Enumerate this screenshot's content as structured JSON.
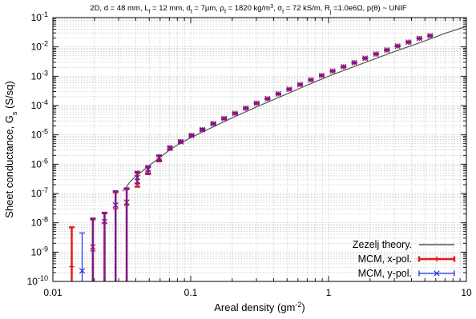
{
  "chart_data": {
    "type": "line",
    "title": "2D, d = 48 mm, L_f = 12 mm, d_f = 7µm, ρ_f = 1820 kg/m³, σ_f = 72 kS/m, R_j =1.0e6Ω, p(θ) ~ UNIF",
    "title_parts": [
      {
        "t": "2D, d = 48 mm, L"
      },
      {
        "t": "f",
        "sub": true
      },
      {
        "t": " = 12 mm, d"
      },
      {
        "t": "f",
        "sub": true
      },
      {
        "t": " = 7µm, ρ"
      },
      {
        "t": "f",
        "sub": true
      },
      {
        "t": " = 1820 kg/m"
      },
      {
        "t": "3",
        "sup": true
      },
      {
        "t": ", σ"
      },
      {
        "t": "f",
        "sub": true
      },
      {
        "t": " = 72 kS/m, R"
      },
      {
        "t": "j",
        "sub": true
      },
      {
        "t": " =1.0e6Ω, p(θ) ~ UNIF"
      }
    ],
    "xlabel": "Areal density (gm⁻²)",
    "xlabel_parts": [
      {
        "t": "Areal density (gm"
      },
      {
        "t": "-2",
        "sup": true
      },
      {
        "t": ")"
      }
    ],
    "ylabel": "Sheet conductance, Gs (S/sq)",
    "ylabel_parts": [
      {
        "t": "Sheet conductance, G"
      },
      {
        "t": "s",
        "sub": true
      },
      {
        "t": " (S/sq)"
      }
    ],
    "xscale": "log",
    "yscale": "log",
    "xlim": [
      0.01,
      10
    ],
    "ylim": [
      1e-10,
      0.1
    ],
    "x_ticks": [
      0.01,
      0.1,
      1,
      10
    ],
    "x_tick_labels": [
      "0.01",
      "0.1",
      "1",
      "10"
    ],
    "y_ticks": [
      1e-10,
      1e-09,
      1e-08,
      1e-07,
      1e-06,
      1e-05,
      0.0001,
      0.001,
      0.01,
      0.1
    ],
    "y_tick_labels": [
      {
        "base": "10",
        "exp": "-10"
      },
      {
        "base": "10",
        "exp": "-9"
      },
      {
        "base": "10",
        "exp": "-8"
      },
      {
        "base": "10",
        "exp": "-7"
      },
      {
        "base": "10",
        "exp": "-6"
      },
      {
        "base": "10",
        "exp": "-5"
      },
      {
        "base": "10",
        "exp": "-4"
      },
      {
        "base": "10",
        "exp": "-3"
      },
      {
        "base": "10",
        "exp": "-2"
      },
      {
        "base": "10",
        "exp": "-1"
      }
    ],
    "grid": true,
    "legend_position": "bottom-right",
    "theory": {
      "name": "Zezelj theory.",
      "color": "#555555",
      "x": [
        0.032,
        0.034,
        0.036,
        0.04,
        0.045,
        0.05,
        0.06,
        0.07,
        0.08,
        0.1,
        0.15,
        0.2,
        0.3,
        0.5,
        0.7,
        1,
        2,
        3,
        5,
        7,
        10
      ],
      "y": [
        1.2e-07,
        1.6e-07,
        2.4e-07,
        4e-07,
        6e-07,
        9e-07,
        1.7e-06,
        3e-06,
        4.5e-06,
        8e-06,
        2e-05,
        3.8e-05,
        9e-05,
        0.00025,
        0.0005,
        0.001,
        0.0034,
        0.0069,
        0.016,
        0.029,
        0.05
      ]
    },
    "series": [
      {
        "name": "MCM, x-pol.",
        "color": "#e8141b",
        "marker": "plus",
        "x": [
          0.0137,
          0.0195,
          0.0237,
          0.0285,
          0.0343,
          0.041,
          0.049,
          0.059,
          0.0706,
          0.0846,
          0.1014,
          0.1216,
          0.1458,
          0.1748,
          0.2095,
          0.2511,
          0.301,
          0.3608,
          0.4325,
          0.5184,
          0.6213,
          0.7447,
          0.8926,
          1.07,
          1.283,
          1.538,
          1.844,
          2.21,
          2.65,
          3.17,
          3.8,
          4.56,
          5.46
        ],
        "y": [
          3.2e-10,
          1.1e-09,
          1e-08,
          3e-08,
          4e-08,
          3e-07,
          6e-07,
          1.5e-06,
          3.5e-06,
          5.8e-06,
          9.5e-06,
          1.5e-05,
          2.4e-05,
          3.6e-05,
          5.4e-05,
          8.1e-05,
          0.00012,
          0.00017,
          0.00025,
          0.00036,
          0.00052,
          0.00075,
          0.00106,
          0.0015,
          0.0021,
          0.0029,
          0.0041,
          0.0057,
          0.0078,
          0.0107,
          0.0145,
          0.0195,
          0.024
        ],
        "y_err_low": [
          1e-10,
          1e-10,
          1e-10,
          1e-10,
          1e-10,
          1.7e-07,
          4.6e-07,
          1.25e-06,
          3.1e-06,
          5.4e-06,
          9e-06,
          1.4e-05,
          2.3e-05,
          3.5e-05,
          5.2e-05,
          7.9e-05,
          0.000117,
          0.000167,
          0.000245,
          0.000355,
          0.00051,
          0.00074,
          0.00105,
          0.00148,
          0.00208,
          0.00288,
          0.00405,
          0.00565,
          0.0077,
          0.0106,
          0.0143,
          0.0193,
          0.0237
        ],
        "y_err_high": [
          7e-09,
          1.3e-08,
          2.1e-08,
          1.1e-07,
          1.4e-07,
          5e-07,
          8e-07,
          1.9e-06,
          4e-06,
          6.3e-06,
          1.01e-05,
          1.6e-05,
          2.5e-05,
          3.7e-05,
          5.6e-05,
          8.3e-05,
          0.000123,
          0.000173,
          0.000255,
          0.000365,
          0.00053,
          0.00076,
          0.00107,
          0.00152,
          0.00212,
          0.00292,
          0.00415,
          0.00575,
          0.0079,
          0.0108,
          0.0147,
          0.0197,
          0.0243
        ]
      },
      {
        "name": "MCM, y-pol.",
        "color": "#2233dd",
        "marker": "x",
        "x": [
          0.0163,
          0.0195,
          0.0237,
          0.0285,
          0.0343,
          0.041,
          0.049,
          0.059,
          0.0706,
          0.0846,
          0.1014,
          0.1216,
          0.1458,
          0.1748,
          0.2095,
          0.2511,
          0.301,
          0.3608,
          0.4325,
          0.5184,
          0.6213,
          0.7447,
          0.8926,
          1.07,
          1.283,
          1.538,
          1.844,
          2.21,
          2.65,
          3.17,
          3.8,
          4.56,
          5.46
        ],
        "y": [
          2.3e-10,
          1.5e-09,
          1.1e-08,
          4e-08,
          5e-08,
          3.5e-07,
          6.5e-07,
          1.6e-06,
          3.5e-06,
          5.8e-06,
          9.5e-06,
          1.5e-05,
          2.4e-05,
          3.6e-05,
          5.4e-05,
          8.1e-05,
          0.00012,
          0.00017,
          0.00025,
          0.00036,
          0.00052,
          0.00075,
          0.00106,
          0.0015,
          0.0021,
          0.0029,
          0.0041,
          0.0057,
          0.0078,
          0.0107,
          0.0145,
          0.0195,
          0.024
        ],
        "y_err_low": [
          1e-10,
          1e-10,
          1e-10,
          1e-10,
          1e-10,
          2.2e-07,
          4.8e-07,
          1.3e-06,
          3.1e-06,
          5.4e-06,
          9e-06,
          1.4e-05,
          2.3e-05,
          3.5e-05,
          5.2e-05,
          7.9e-05,
          0.000117,
          0.000167,
          0.000245,
          0.000355,
          0.00051,
          0.00074,
          0.00105,
          0.00148,
          0.00208,
          0.00288,
          0.00405,
          0.00565,
          0.0077,
          0.0106,
          0.0143,
          0.0193,
          0.0237
        ],
        "y_err_high": [
          4.5e-09,
          1.4e-08,
          2.2e-08,
          1.2e-07,
          1.5e-07,
          5.5e-07,
          8.5e-07,
          2e-06,
          4e-06,
          6.3e-06,
          1.01e-05,
          1.6e-05,
          2.5e-05,
          3.7e-05,
          5.6e-05,
          8.3e-05,
          0.000123,
          0.000173,
          0.000255,
          0.000365,
          0.00053,
          0.00076,
          0.00107,
          0.00152,
          0.00212,
          0.00292,
          0.00415,
          0.00575,
          0.0079,
          0.0108,
          0.0147,
          0.0197,
          0.0243
        ]
      }
    ],
    "overlap_color": "#7a1a8c"
  }
}
